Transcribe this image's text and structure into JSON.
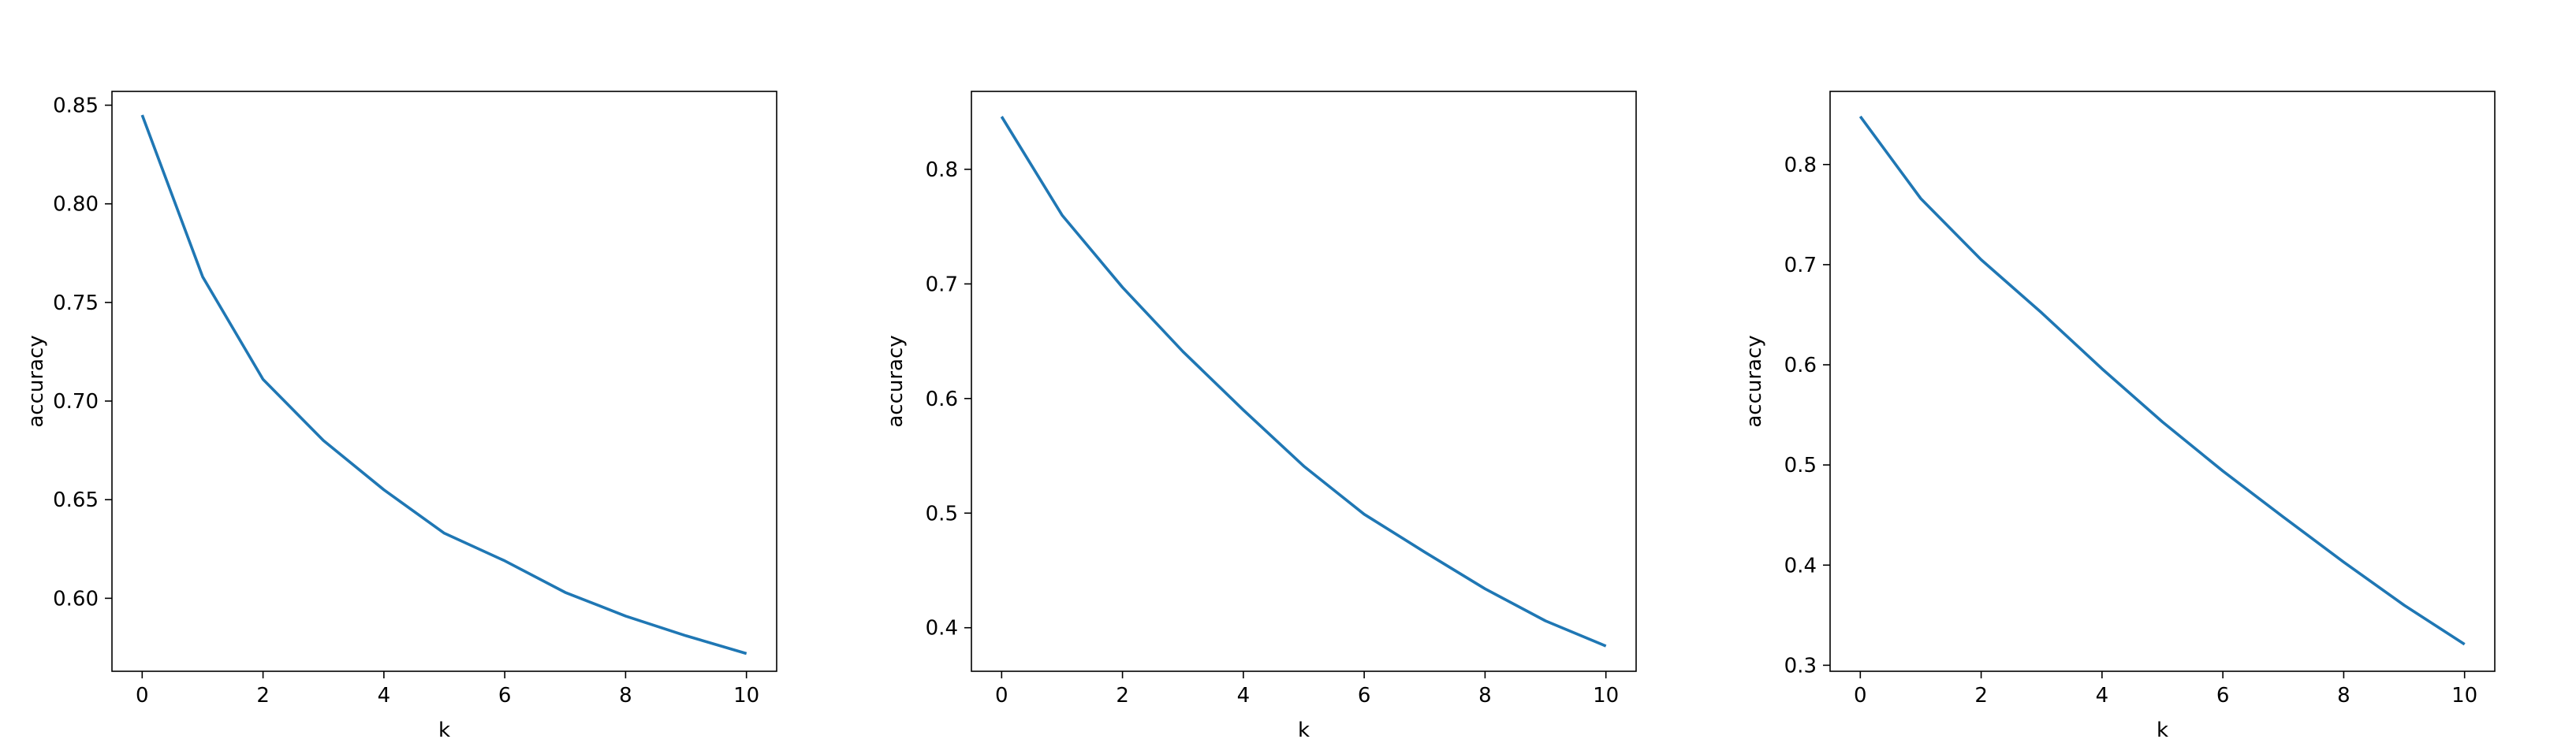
{
  "figure": {
    "line_color": "#1f77b4",
    "axes_color": "#000000",
    "background": "#ffffff"
  },
  "chart_data": [
    {
      "type": "line",
      "title": "",
      "xlabel": "k",
      "ylabel": "accuracy",
      "xlim": [
        -0.5,
        10.5
      ],
      "ylim": [
        0.563,
        0.857
      ],
      "xticks": [
        0,
        2,
        4,
        6,
        8,
        10
      ],
      "xtick_labels": [
        "0",
        "2",
        "4",
        "6",
        "8",
        "10"
      ],
      "yticks": [
        0.6,
        0.65,
        0.7,
        0.75,
        0.8,
        0.85
      ],
      "ytick_labels": [
        "0.60",
        "0.65",
        "0.70",
        "0.75",
        "0.80",
        "0.85"
      ],
      "grid": false,
      "series": [
        {
          "x": [
            0,
            1,
            2,
            3,
            4,
            5,
            6,
            7,
            8,
            9,
            10
          ],
          "values": [
            0.845,
            0.763,
            0.711,
            0.68,
            0.655,
            0.633,
            0.619,
            0.603,
            0.591,
            0.581,
            0.572
          ]
        }
      ]
    },
    {
      "type": "line",
      "title": "",
      "xlabel": "k",
      "ylabel": "accuracy",
      "xlim": [
        -0.5,
        10.5
      ],
      "ylim": [
        0.362,
        0.868
      ],
      "xticks": [
        0,
        2,
        4,
        6,
        8,
        10
      ],
      "xtick_labels": [
        "0",
        "2",
        "4",
        "6",
        "8",
        "10"
      ],
      "yticks": [
        0.4,
        0.5,
        0.6,
        0.7,
        0.8
      ],
      "ytick_labels": [
        "0.4",
        "0.5",
        "0.6",
        "0.7",
        "0.8"
      ],
      "grid": false,
      "series": [
        {
          "x": [
            0,
            1,
            2,
            3,
            4,
            5,
            6,
            7,
            8,
            9,
            10
          ],
          "values": [
            0.846,
            0.76,
            0.697,
            0.641,
            0.59,
            0.541,
            0.499,
            0.466,
            0.434,
            0.406,
            0.384
          ]
        }
      ]
    },
    {
      "type": "line",
      "title": "",
      "xlabel": "k",
      "ylabel": "accuracy",
      "xlim": [
        -0.5,
        10.5
      ],
      "ylim": [
        0.294,
        0.873
      ],
      "xticks": [
        0,
        2,
        4,
        6,
        8,
        10
      ],
      "xtick_labels": [
        "0",
        "2",
        "4",
        "6",
        "8",
        "10"
      ],
      "yticks": [
        0.3,
        0.4,
        0.5,
        0.6,
        0.7,
        0.8
      ],
      "ytick_labels": [
        "0.3",
        "0.4",
        "0.5",
        "0.6",
        "0.7",
        "0.8"
      ],
      "grid": false,
      "series": [
        {
          "x": [
            0,
            1,
            2,
            3,
            4,
            5,
            6,
            7,
            8,
            9,
            10
          ],
          "values": [
            0.848,
            0.766,
            0.705,
            0.652,
            0.596,
            0.543,
            0.494,
            0.448,
            0.403,
            0.36,
            0.321
          ]
        }
      ]
    }
  ]
}
